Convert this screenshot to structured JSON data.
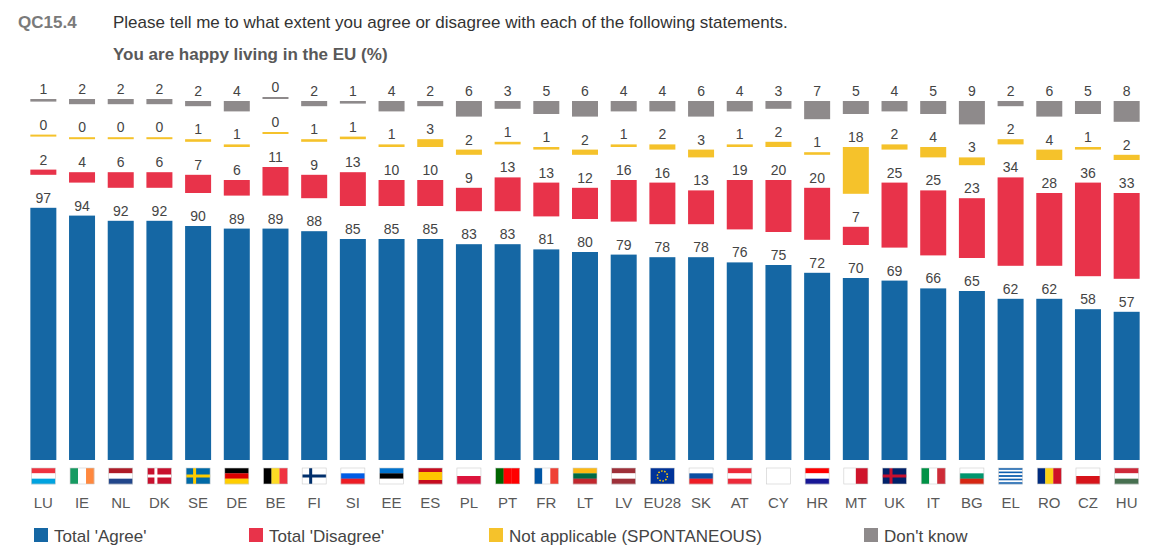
{
  "chart_data": {
    "type": "bar",
    "title": "You are happy living in the EU (%)",
    "subtitle": "Please tell me to what extent you agree or disagree with each of the following statements.",
    "annotations": [
      "QC15.4"
    ],
    "categories": [
      "LU",
      "IE",
      "NL",
      "DK",
      "SE",
      "DE",
      "BE",
      "FI",
      "SI",
      "EE",
      "ES",
      "PL",
      "PT",
      "FR",
      "LT",
      "LV",
      "EU28",
      "SK",
      "AT",
      "CY",
      "HR",
      "MT",
      "UK",
      "IT",
      "BG",
      "EL",
      "RO",
      "CZ",
      "HU"
    ],
    "series": [
      {
        "name": "Total 'Agree'",
        "color": "#1567a4",
        "values": [
          97,
          94,
          92,
          92,
          90,
          89,
          89,
          88,
          85,
          85,
          85,
          83,
          83,
          81,
          80,
          79,
          78,
          78,
          76,
          75,
          72,
          70,
          69,
          66,
          65,
          62,
          62,
          58,
          57
        ]
      },
      {
        "name": "Total 'Disagree'",
        "color": "#e8334a",
        "values": [
          2,
          4,
          6,
          6,
          7,
          6,
          11,
          9,
          13,
          10,
          10,
          9,
          13,
          13,
          12,
          16,
          16,
          13,
          19,
          20,
          20,
          7,
          25,
          25,
          23,
          34,
          28,
          36,
          33
        ]
      },
      {
        "name": "Not applicable (SPONTANEOUS)",
        "color": "#f5c22b",
        "values": [
          0,
          0,
          0,
          0,
          1,
          1,
          0,
          1,
          1,
          1,
          3,
          2,
          1,
          1,
          2,
          1,
          2,
          3,
          1,
          2,
          1,
          18,
          2,
          4,
          3,
          2,
          4,
          1,
          2
        ]
      },
      {
        "name": "Don't know",
        "color": "#8e8a8b",
        "values": [
          1,
          2,
          2,
          2,
          2,
          4,
          0,
          2,
          1,
          4,
          2,
          6,
          3,
          5,
          6,
          4,
          4,
          6,
          4,
          3,
          7,
          5,
          4,
          5,
          9,
          2,
          6,
          5,
          8
        ]
      }
    ],
    "ylim": [
      0,
      100
    ],
    "stacked": true,
    "data_labels": true,
    "tick_labels": "x",
    "grid": false,
    "legend": "bottom"
  }
}
